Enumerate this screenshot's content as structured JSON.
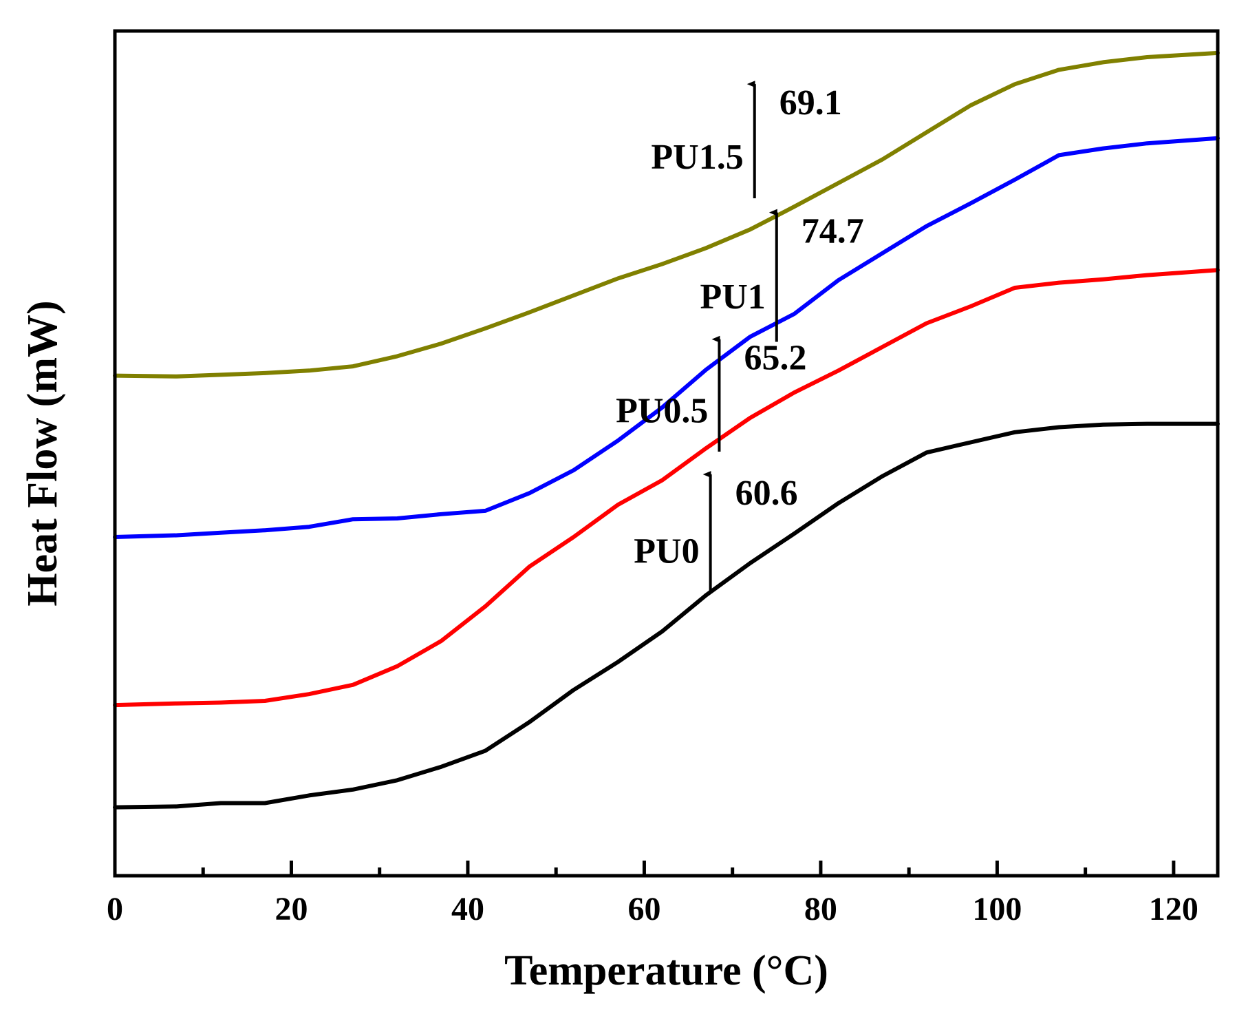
{
  "chart_data": {
    "type": "line",
    "title": "",
    "xlabel": "Temperature (°C)",
    "ylabel": "Heat Flow (mW)",
    "xlim": [
      0,
      125
    ],
    "ylim": [
      0,
      100
    ],
    "xticks": [
      0,
      20,
      40,
      60,
      80,
      100,
      120
    ],
    "xtick_labels": [
      "0",
      "20",
      "40",
      "60",
      "80",
      "100",
      "120"
    ],
    "y_ticks_shown": false,
    "grid": false,
    "legend": "none",
    "series": [
      {
        "name": "PU0",
        "color": "#000000",
        "x": [
          0,
          7,
          12,
          17,
          22,
          27,
          32,
          37,
          42,
          47,
          52,
          57,
          62,
          67,
          72,
          77,
          82,
          87,
          92,
          97,
          102,
          107,
          112,
          117,
          125
        ],
        "y": [
          8.1,
          8.2,
          8.6,
          8.6,
          9.5,
          10.2,
          11.3,
          12.9,
          14.8,
          18.2,
          22.0,
          25.3,
          28.9,
          33.2,
          37.0,
          40.5,
          44.1,
          47.3,
          50.1,
          51.3,
          52.5,
          53.1,
          53.4,
          53.5,
          53.5
        ],
        "tg": 60.6,
        "tg_label": "60.6",
        "arrow_x": 67.5,
        "arrow_y": [
          33.4,
          48.0
        ]
      },
      {
        "name": "PU0.5",
        "color": "#ff0000",
        "x": [
          0,
          7,
          12,
          17,
          22,
          27,
          32,
          37,
          42,
          47,
          52,
          57,
          62,
          67,
          72,
          77,
          82,
          87,
          92,
          97,
          102,
          107,
          112,
          117,
          125
        ],
        "y": [
          20.2,
          20.4,
          20.5,
          20.7,
          21.5,
          22.6,
          24.8,
          27.8,
          31.9,
          36.6,
          40.1,
          43.9,
          46.8,
          50.6,
          54.2,
          57.2,
          59.8,
          62.6,
          65.4,
          67.4,
          69.6,
          70.2,
          70.6,
          71.1,
          71.7
        ],
        "tg": 65.2,
        "tg_label": "65.2",
        "arrow_x": 68.5,
        "arrow_y": [
          50.2,
          64.0
        ]
      },
      {
        "name": "PU1",
        "color": "#0000ff",
        "x": [
          0,
          7,
          12,
          17,
          22,
          27,
          32,
          37,
          42,
          47,
          52,
          57,
          62,
          67,
          72,
          77,
          82,
          87,
          92,
          97,
          102,
          107,
          112,
          117,
          125
        ],
        "y": [
          40.1,
          40.3,
          40.6,
          40.9,
          41.3,
          42.2,
          42.3,
          42.8,
          43.2,
          45.3,
          48.0,
          51.5,
          55.4,
          59.9,
          63.8,
          66.5,
          70.5,
          73.7,
          76.9,
          79.6,
          82.4,
          85.3,
          86.1,
          86.7,
          87.3
        ],
        "tg": 74.7,
        "tg_label": "74.7",
        "arrow_x": 75.0,
        "arrow_y": [
          63.2,
          79.0
        ]
      },
      {
        "name": "PU1.5",
        "color": "#808000",
        "x": [
          0,
          7,
          12,
          17,
          22,
          27,
          32,
          37,
          42,
          47,
          52,
          57,
          62,
          67,
          72,
          77,
          82,
          87,
          92,
          97,
          102,
          107,
          112,
          117,
          125
        ],
        "y": [
          59.2,
          59.1,
          59.3,
          59.5,
          59.8,
          60.3,
          61.5,
          63.0,
          64.8,
          66.7,
          68.7,
          70.7,
          72.4,
          74.3,
          76.5,
          79.2,
          82.0,
          84.8,
          88.0,
          91.2,
          93.7,
          95.4,
          96.3,
          96.9,
          97.4
        ],
        "tg": 69.1,
        "tg_label": "69.1",
        "arrow_x": 72.5,
        "arrow_y": [
          80.2,
          94.2
        ]
      }
    ],
    "annotations": [
      {
        "name": "PU0",
        "label": "PU0",
        "value_label": "60.6"
      },
      {
        "name": "PU0.5",
        "label": "PU0.5",
        "value_label": "65.2"
      },
      {
        "name": "PU1",
        "label": "PU1",
        "value_label": "74.7"
      },
      {
        "name": "PU1.5",
        "label": "PU1.5",
        "value_label": "69.1"
      }
    ]
  }
}
